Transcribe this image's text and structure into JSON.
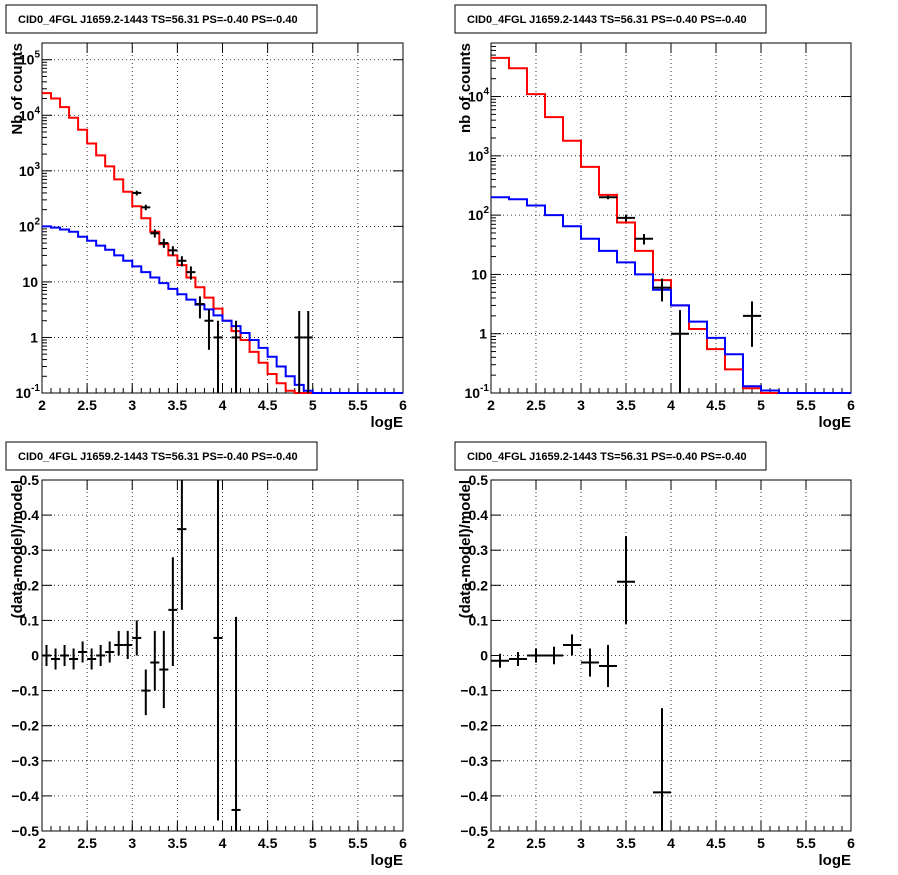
{
  "chart_data": [
    {
      "type": "step",
      "title": "CID0_4FGL J1659.2-1443 TS=56.31 PS=-0.40 PS=-0.40",
      "xlabel": "logE",
      "ylabel": "Nb of counts",
      "xlim": [
        2,
        6
      ],
      "ylim": [
        0.1,
        200000
      ],
      "yscale": "log",
      "grid": true,
      "x_ticks": [
        "2",
        "2.5",
        "3",
        "3.5",
        "4",
        "4.5",
        "5",
        "5.5",
        "6"
      ],
      "y_ticks": [
        {
          "v": 0.1,
          "base": "10",
          "exp": "-1"
        },
        {
          "v": 1,
          "base": "1"
        },
        {
          "v": 10,
          "base": "10"
        },
        {
          "v": 100,
          "base": "10",
          "exp": "2"
        },
        {
          "v": 1000,
          "base": "10",
          "exp": "3"
        },
        {
          "v": 10000,
          "base": "10",
          "exp": "4"
        },
        {
          "v": 100000,
          "base": "10",
          "exp": "5"
        }
      ],
      "series": [
        {
          "color": "#ff0000",
          "edges": [
            2.0,
            2.1,
            2.2,
            2.3,
            2.4,
            2.5,
            2.6,
            2.7,
            2.8,
            2.9,
            3.0,
            3.1,
            3.2,
            3.3,
            3.4,
            3.5,
            3.6,
            3.7,
            3.8,
            3.9,
            4.0,
            4.1,
            4.2,
            4.3,
            4.4,
            4.5,
            4.6,
            4.7,
            4.8,
            4.9,
            5.0
          ],
          "values": [
            25000,
            20000,
            14000,
            9000,
            5500,
            3100,
            1900,
            1200,
            700,
            420,
            230,
            140,
            80,
            48,
            30,
            20,
            12,
            8,
            5.2,
            3.3,
            2.0,
            1.3,
            0.9,
            0.55,
            0.35,
            0.22,
            0.15,
            0.11,
            0.1,
            0.1
          ]
        },
        {
          "color": "#0000ff",
          "edges": [
            2.0,
            2.1,
            2.2,
            2.3,
            2.4,
            2.5,
            2.6,
            2.7,
            2.8,
            2.9,
            3.0,
            3.1,
            3.2,
            3.3,
            3.4,
            3.5,
            3.6,
            3.7,
            3.8,
            3.9,
            4.0,
            4.1,
            4.2,
            4.3,
            4.4,
            4.5,
            4.6,
            4.7,
            4.8,
            4.9,
            5.0,
            5.1,
            5.2,
            5.3,
            5.4,
            5.5,
            5.6,
            5.7,
            5.8,
            5.9,
            6.0
          ],
          "values": [
            100,
            95,
            88,
            80,
            65,
            55,
            45,
            38,
            30,
            24,
            19,
            15,
            12,
            9.5,
            7.5,
            6,
            4.8,
            3.9,
            3.2,
            2.5,
            2.0,
            1.6,
            1.2,
            0.9,
            0.65,
            0.45,
            0.3,
            0.2,
            0.14,
            0.11,
            0.1,
            0.1,
            0.1,
            0.1,
            0.1,
            0.1,
            0.1,
            0.1,
            0.1,
            0.1
          ]
        }
      ],
      "points": [
        {
          "x": 3.05,
          "y": 400,
          "xerr": 0.05,
          "ylo": 360,
          "yhi": 440
        },
        {
          "x": 3.15,
          "y": 220,
          "xerr": 0.05,
          "ylo": 195,
          "yhi": 245
        },
        {
          "x": 3.25,
          "y": 75,
          "xerr": 0.05,
          "ylo": 63,
          "yhi": 88
        },
        {
          "x": 3.35,
          "y": 50,
          "xerr": 0.05,
          "ylo": 41,
          "yhi": 60
        },
        {
          "x": 3.45,
          "y": 37,
          "xerr": 0.05,
          "ylo": 30,
          "yhi": 44
        },
        {
          "x": 3.55,
          "y": 24,
          "xerr": 0.05,
          "ylo": 19,
          "yhi": 29
        },
        {
          "x": 3.65,
          "y": 15,
          "xerr": 0.05,
          "ylo": 11,
          "yhi": 19
        },
        {
          "x": 3.75,
          "y": 4,
          "xerr": 0.05,
          "ylo": 2.2,
          "yhi": 5.5
        },
        {
          "x": 3.85,
          "y": 2,
          "xerr": 0.05,
          "ylo": 0.6,
          "yhi": 3.2
        },
        {
          "x": 3.95,
          "y": 1,
          "xerr": 0.05,
          "ylo": 0.1,
          "yhi": 2.0
        },
        {
          "x": 4.15,
          "y": 1,
          "xerr": 0.05,
          "ylo": 0.1,
          "yhi": 2.0
        },
        {
          "x": 4.85,
          "y": 1,
          "xerr": 0.05,
          "ylo": 0.1,
          "yhi": 3.0
        },
        {
          "x": 4.95,
          "y": 1,
          "xerr": 0.05,
          "ylo": 0.1,
          "yhi": 3.0
        }
      ]
    },
    {
      "type": "step",
      "title": "CID0_4FGL J1659.2-1443 TS=56.31 PS=-0.40 PS=-0.40",
      "xlabel": "logE",
      "ylabel": "nb of counts",
      "xlim": [
        2,
        6
      ],
      "ylim": [
        0.1,
        80000
      ],
      "yscale": "log",
      "grid": true,
      "x_ticks": [
        "2",
        "2.5",
        "3",
        "3.5",
        "4",
        "4.5",
        "5",
        "5.5",
        "6"
      ],
      "y_ticks": [
        {
          "v": 0.1,
          "base": "10",
          "exp": "-1"
        },
        {
          "v": 1,
          "base": "1"
        },
        {
          "v": 10,
          "base": "10"
        },
        {
          "v": 100,
          "base": "10",
          "exp": "2"
        },
        {
          "v": 1000,
          "base": "10",
          "exp": "3"
        },
        {
          "v": 10000,
          "base": "10",
          "exp": "4"
        }
      ],
      "series": [
        {
          "color": "#ff0000",
          "edges": [
            2.0,
            2.2,
            2.4,
            2.6,
            2.8,
            3.0,
            3.2,
            3.4,
            3.6,
            3.8,
            4.0,
            4.2,
            4.4,
            4.6,
            4.8,
            5.0,
            5.2
          ],
          "values": [
            45000,
            30000,
            11000,
            4500,
            1800,
            650,
            220,
            75,
            25,
            8,
            3,
            1.2,
            0.55,
            0.25,
            0.12,
            0.1
          ]
        },
        {
          "color": "#0000ff",
          "edges": [
            2.0,
            2.2,
            2.4,
            2.6,
            2.8,
            3.0,
            3.2,
            3.4,
            3.6,
            3.8,
            4.0,
            4.2,
            4.4,
            4.6,
            4.8,
            5.0,
            5.2,
            5.4,
            5.6,
            5.8,
            6.0
          ],
          "values": [
            200,
            185,
            145,
            100,
            65,
            40,
            25,
            16,
            10,
            5.5,
            3,
            1.6,
            0.85,
            0.45,
            0.13,
            0.11,
            0.1,
            0.1,
            0.1,
            0.1
          ]
        }
      ],
      "points": [
        {
          "x": 3.3,
          "y": 200,
          "xerr": 0.1,
          "ylo": 185,
          "yhi": 215
        },
        {
          "x": 3.5,
          "y": 90,
          "xerr": 0.1,
          "ylo": 78,
          "yhi": 102
        },
        {
          "x": 3.7,
          "y": 40,
          "xerr": 0.1,
          "ylo": 32,
          "yhi": 48
        },
        {
          "x": 3.9,
          "y": 6,
          "xerr": 0.1,
          "ylo": 3.5,
          "yhi": 8.5
        },
        {
          "x": 4.1,
          "y": 1,
          "xerr": 0.1,
          "ylo": 0.1,
          "yhi": 2.5
        },
        {
          "x": 4.9,
          "y": 2,
          "xerr": 0.1,
          "ylo": 0.6,
          "yhi": 3.5
        }
      ]
    },
    {
      "type": "scatter",
      "title": "CID0_4FGL J1659.2-1443 TS=56.31 PS=-0.40 PS=-0.40",
      "xlabel": "logE",
      "ylabel": "(data-model)/model",
      "xlim": [
        2,
        6
      ],
      "ylim": [
        -0.5,
        0.5
      ],
      "yscale": "linear",
      "grid": true,
      "x_ticks": [
        "2",
        "2.5",
        "3",
        "3.5",
        "4",
        "4.5",
        "5",
        "5.5",
        "6"
      ],
      "y_tick_labels": [
        "-0.5",
        "-0.4",
        "-0.3",
        "-0.2",
        "-0.1",
        "0",
        "0.1",
        "0.2",
        "0.3",
        "0.4",
        "0.5"
      ],
      "points": [
        {
          "x": 2.05,
          "y": 0.0,
          "xerr": 0.05,
          "ylo": -0.03,
          "yhi": 0.03
        },
        {
          "x": 2.15,
          "y": -0.01,
          "xerr": 0.05,
          "ylo": -0.04,
          "yhi": 0.02
        },
        {
          "x": 2.25,
          "y": 0.0,
          "xerr": 0.05,
          "ylo": -0.03,
          "yhi": 0.03
        },
        {
          "x": 2.35,
          "y": -0.01,
          "xerr": 0.05,
          "ylo": -0.04,
          "yhi": 0.02
        },
        {
          "x": 2.45,
          "y": 0.01,
          "xerr": 0.05,
          "ylo": -0.02,
          "yhi": 0.04
        },
        {
          "x": 2.55,
          "y": -0.01,
          "xerr": 0.05,
          "ylo": -0.04,
          "yhi": 0.02
        },
        {
          "x": 2.65,
          "y": 0.0,
          "xerr": 0.05,
          "ylo": -0.03,
          "yhi": 0.03
        },
        {
          "x": 2.75,
          "y": 0.01,
          "xerr": 0.05,
          "ylo": -0.02,
          "yhi": 0.04
        },
        {
          "x": 2.85,
          "y": 0.03,
          "xerr": 0.05,
          "ylo": 0.0,
          "yhi": 0.07
        },
        {
          "x": 2.95,
          "y": 0.03,
          "xerr": 0.05,
          "ylo": -0.01,
          "yhi": 0.07
        },
        {
          "x": 3.05,
          "y": 0.05,
          "xerr": 0.05,
          "ylo": 0.0,
          "yhi": 0.1
        },
        {
          "x": 3.15,
          "y": -0.1,
          "xerr": 0.05,
          "ylo": -0.17,
          "yhi": -0.04
        },
        {
          "x": 3.25,
          "y": -0.02,
          "xerr": 0.05,
          "ylo": -0.1,
          "yhi": 0.07
        },
        {
          "x": 3.35,
          "y": -0.04,
          "xerr": 0.05,
          "ylo": -0.15,
          "yhi": 0.07
        },
        {
          "x": 3.45,
          "y": 0.13,
          "xerr": 0.05,
          "ylo": -0.03,
          "yhi": 0.28
        },
        {
          "x": 3.55,
          "y": 0.36,
          "xerr": 0.05,
          "ylo": 0.13,
          "yhi": 0.5
        },
        {
          "x": 3.95,
          "y": 0.05,
          "xerr": 0.05,
          "ylo": -0.47,
          "yhi": 0.5
        },
        {
          "x": 4.15,
          "y": -0.44,
          "xerr": 0.05,
          "ylo": -0.5,
          "yhi": 0.11
        }
      ]
    },
    {
      "type": "scatter",
      "title": "CID0_4FGL J1659.2-1443 TS=56.31 PS=-0.40 PS=-0.40",
      "xlabel": "logE",
      "ylabel": "(data-model)/model",
      "xlim": [
        2,
        6
      ],
      "ylim": [
        -0.5,
        0.5
      ],
      "yscale": "linear",
      "grid": true,
      "x_ticks": [
        "2",
        "2.5",
        "3",
        "3.5",
        "4",
        "4.5",
        "5",
        "5.5",
        "6"
      ],
      "y_tick_labels": [
        "-0.5",
        "-0.4",
        "-0.3",
        "-0.2",
        "-0.1",
        "0",
        "0.1",
        "0.2",
        "0.3",
        "0.4",
        "0.5"
      ],
      "points": [
        {
          "x": 2.1,
          "y": -0.015,
          "xerr": 0.1,
          "ylo": -0.035,
          "yhi": 0.005
        },
        {
          "x": 2.3,
          "y": -0.01,
          "xerr": 0.1,
          "ylo": -0.03,
          "yhi": 0.01
        },
        {
          "x": 2.5,
          "y": 0.0,
          "xerr": 0.1,
          "ylo": -0.02,
          "yhi": 0.02
        },
        {
          "x": 2.7,
          "y": 0.0,
          "xerr": 0.1,
          "ylo": -0.025,
          "yhi": 0.025
        },
        {
          "x": 2.9,
          "y": 0.03,
          "xerr": 0.1,
          "ylo": 0.0,
          "yhi": 0.06
        },
        {
          "x": 3.1,
          "y": -0.02,
          "xerr": 0.1,
          "ylo": -0.06,
          "yhi": 0.02
        },
        {
          "x": 3.3,
          "y": -0.03,
          "xerr": 0.1,
          "ylo": -0.09,
          "yhi": 0.03
        },
        {
          "x": 3.5,
          "y": 0.21,
          "xerr": 0.1,
          "ylo": 0.09,
          "yhi": 0.34
        },
        {
          "x": 3.9,
          "y": -0.39,
          "xerr": 0.1,
          "ylo": -0.5,
          "yhi": -0.15
        }
      ]
    }
  ]
}
